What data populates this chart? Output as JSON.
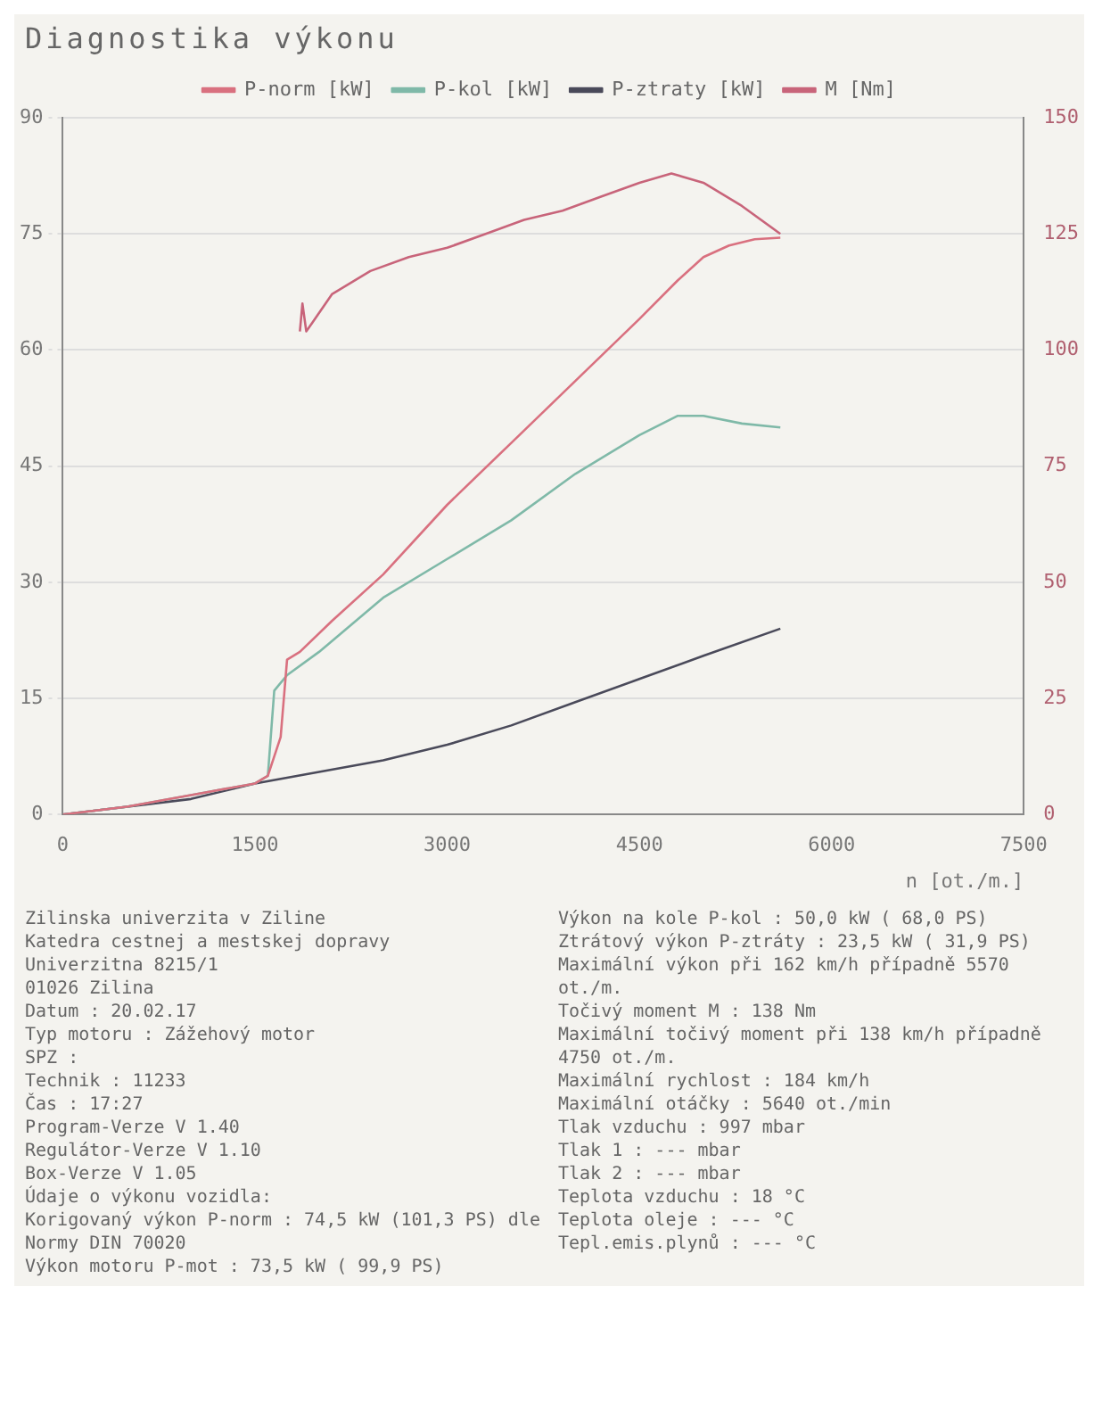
{
  "chart_data": {
    "type": "line",
    "title": "Diagnostika výkonu",
    "xlabel": "n [ot./m.]",
    "xlim": [
      0,
      7500
    ],
    "xticks": [
      0,
      1500,
      3000,
      4500,
      6000,
      7500
    ],
    "ylim": [
      0,
      90
    ],
    "yticks": [
      0,
      15,
      30,
      45,
      60,
      75,
      90
    ],
    "y2lim": [
      0,
      150
    ],
    "y2ticks": [
      0,
      25,
      50,
      75,
      100,
      125,
      150
    ],
    "grid": "y",
    "legend": "top",
    "marker": "none",
    "line_style": "solid",
    "series": [
      {
        "name": "P-norm [kW]",
        "color": "#d9707f",
        "x": [
          0,
          500,
          1000,
          1500,
          1600,
          1700,
          1750,
          1850,
          2100,
          2500,
          3000,
          3500,
          4000,
          4500,
          4800,
          5000,
          5200,
          5400,
          5600
        ],
        "values": [
          0,
          1,
          2.5,
          4,
          5,
          10,
          20,
          21,
          25,
          31,
          40,
          48,
          56,
          64,
          69,
          72,
          73.5,
          74.3,
          74.5
        ]
      },
      {
        "name": "P-kol [kW]",
        "color": "#7fb9a8",
        "x": [
          0,
          500,
          1000,
          1500,
          1600,
          1650,
          1750,
          2000,
          2500,
          3000,
          3500,
          4000,
          4500,
          4800,
          5000,
          5300,
          5600
        ],
        "values": [
          0,
          1,
          2.5,
          4,
          5,
          16,
          18,
          21,
          28,
          33,
          38,
          44,
          49,
          51.5,
          51.5,
          50.5,
          50
        ]
      },
      {
        "name": "P-ztraty [kW]",
        "color": "#4a4a5a",
        "x": [
          0,
          1000,
          1500,
          2000,
          2500,
          3000,
          3500,
          4000,
          4500,
          5000,
          5600
        ],
        "values": [
          0,
          2,
          4,
          5.5,
          7,
          9,
          11.5,
          14.5,
          17.5,
          20.5,
          24
        ]
      },
      {
        "name": "M [Nm]",
        "color": "#c8647a",
        "axis": "y2",
        "x": [
          1850,
          1870,
          1900,
          1950,
          2100,
          2400,
          2700,
          3000,
          3300,
          3600,
          3900,
          4200,
          4500,
          4750,
          5000,
          5300,
          5600
        ],
        "values": [
          104,
          110,
          104,
          106,
          112,
          117,
          120,
          122,
          125,
          128,
          130,
          133,
          136,
          138,
          136,
          131,
          125
        ]
      }
    ],
    "annotations": [
      "Zilinska univerzita v Ziline",
      "Katedra cestnej a mestskej dopravy",
      "Univerzitna 8215/1",
      "01026 Zilina",
      "Datum : 20.02.17",
      "Typ motoru : Zážehový motor",
      "SPZ :",
      "Technik : 11233",
      "Čas : 17:27",
      "Program-Verze V 1.40",
      "Regulátor-Verze V 1.10",
      "Box-Verze V 1.05",
      "Údaje o výkonu vozidla:",
      "Korigovaný výkon P-norm : 74,5 kW (101,3 PS) dle Normy DIN 70020",
      "Výkon motoru P-mot : 73,5 kW ( 99,9 PS)",
      "Výkon na kole P-kol : 50,0 kW ( 68,0 PS)",
      "Ztrátový výkon P-ztráty : 23,5 kW ( 31,9 PS)",
      "Maximální výkon při 162 km/h případně 5570 ot./m.",
      "Točivý moment M : 138 Nm",
      "Maximální točivý moment při 138 km/h případně 4750 ot./m.",
      "Maximální rychlost : 184 km/h",
      "Maximální otáčky : 5640 ot./min",
      "Tlak vzduchu : 997 mbar",
      "Tlak 1 : --- mbar",
      "Tlak 2 : --- mbar",
      "Teplota vzduchu : 18 °C",
      "Teplota oleje : --- °C",
      "Tepl.emis.plynů : --- °C"
    ]
  }
}
